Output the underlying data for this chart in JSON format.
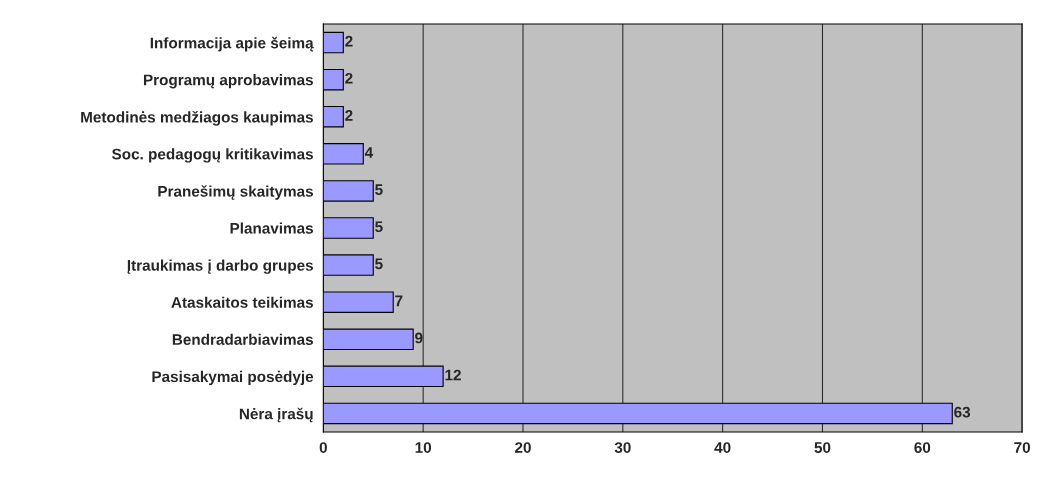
{
  "chart_data": {
    "type": "bar",
    "orientation": "horizontal",
    "categories": [
      "Informacija apie šeimą",
      "Programų aprobavimas",
      "Metodinės medžiagos kaupimas",
      "Soc. pedagogų kritikavimas",
      "Pranešimų skaitymas",
      "Planavimas",
      "Įtraukimas į darbo grupes",
      "Ataskaitos teikimas",
      "Bendradarbiavimas",
      "Pasisakymai posėdyje",
      "Nėra įrašų"
    ],
    "values": [
      2,
      2,
      2,
      4,
      5,
      5,
      5,
      7,
      9,
      12,
      63
    ],
    "color": "#9999ff",
    "xlim": [
      0,
      70
    ],
    "xticks": [
      0,
      10,
      20,
      30,
      40,
      50,
      60,
      70
    ],
    "grid": "x",
    "data_labels": true,
    "legend": false
  }
}
